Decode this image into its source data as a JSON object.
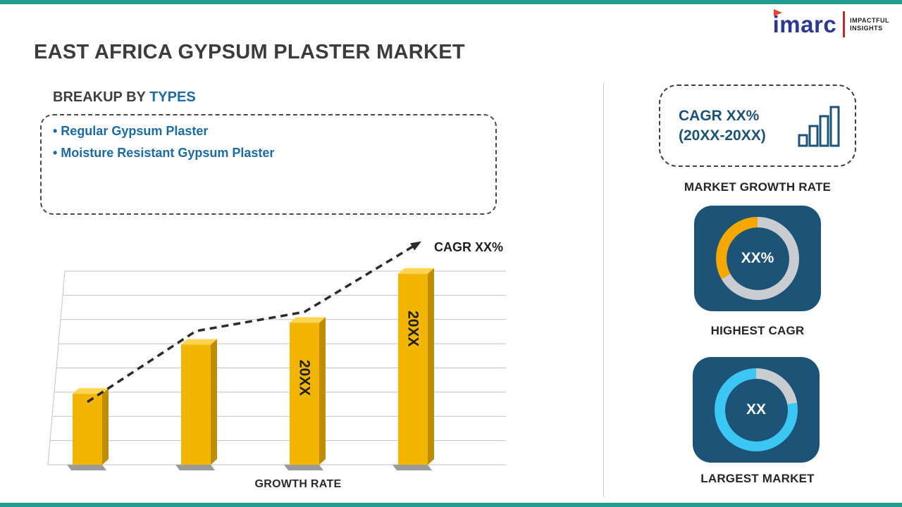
{
  "page": {
    "title": "EAST AFRICA GYPSUM PLASTER MARKET"
  },
  "colors": {
    "accent_teal": "#1F9E8E",
    "brand_navy": "#2B3990",
    "brand_red": "#C1272D",
    "text_blue": "#1C6BA4",
    "panel_navy": "#1D5377",
    "bar_gold": "#F2B600",
    "bar_gold_dark": "#BE8E00",
    "bar_gold_light": "#FFD452",
    "grid_gray": "#C2C2C2",
    "trend_dark": "#2B2B2B"
  },
  "logo": {
    "brand": "imarc",
    "tagline_line1": "IMPACTFUL",
    "tagline_line2": "INSIGHTS"
  },
  "breakup": {
    "heading_prefix": "BREAKUP BY ",
    "heading_highlight": "TYPES",
    "items": [
      "• Regular Gypsum Plaster",
      "• Moisture Resistant Gypsum Plaster"
    ]
  },
  "chart_data": {
    "type": "bar",
    "title": "",
    "xlabel": "GROWTH RATE",
    "ylabel": "",
    "categories": [
      "",
      "",
      "",
      ""
    ],
    "values": [
      26,
      44,
      52,
      70
    ],
    "bar_labels": [
      "",
      "",
      "20XX",
      "20XX"
    ],
    "ylim": [
      0,
      80
    ],
    "grid": true,
    "legend": "none",
    "trend": {
      "label": "CAGR XX%",
      "values": [
        23,
        49,
        56,
        80
      ]
    }
  },
  "sidebar": {
    "cagr_box": {
      "line1": "CAGR XX%",
      "line2": "(20XX-20XX)"
    },
    "market_growth_rate_label": "MARKET GROWTH RATE",
    "highest_cagr": {
      "center_value": "XX%",
      "caption": "HIGHEST CAGR",
      "segments": [
        {
          "color": "#C9CDD1",
          "from": 0,
          "to": 240
        },
        {
          "color": "#F5A800",
          "from": 240,
          "to": 360
        }
      ]
    },
    "largest_market": {
      "center_value": "XX",
      "caption": "LARGEST MARKET",
      "segments": [
        {
          "color": "#C9CDD1",
          "from": 0,
          "to": 80
        },
        {
          "color": "#3BC6F3",
          "from": 80,
          "to": 360
        }
      ]
    }
  }
}
